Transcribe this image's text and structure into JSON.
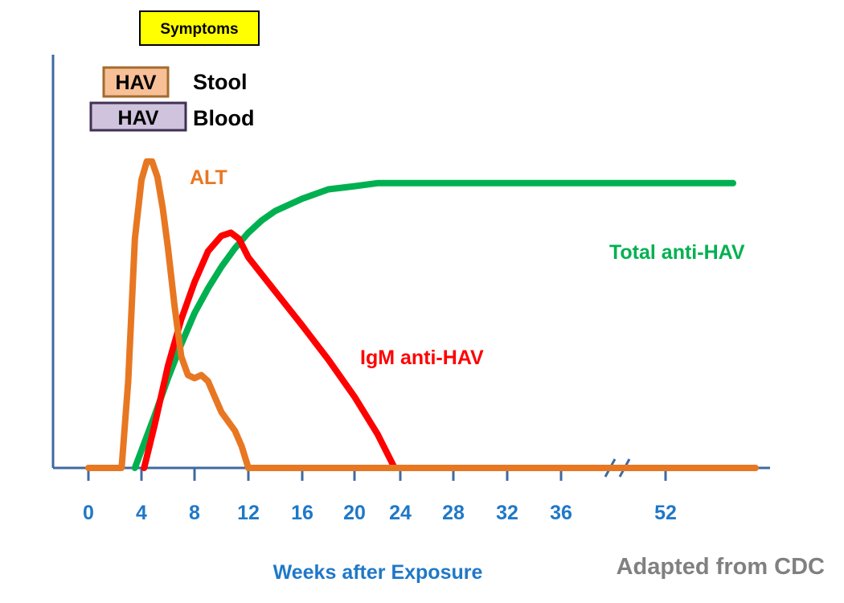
{
  "chart_data": {
    "type": "line",
    "title": "",
    "xlabel": "Weeks after Exposure",
    "ylabel": "",
    "x_ticks": [
      "0",
      "4",
      "8",
      "12",
      "16",
      "20",
      "24",
      "28",
      "32",
      "36",
      "52"
    ],
    "x_axis_break": "between 36 and 52",
    "xlim": [
      0,
      60
    ],
    "ylim": [
      0,
      1
    ],
    "grid": false,
    "series": [
      {
        "name": "ALT",
        "color": "#e87722",
        "x": [
          0,
          2,
          2.5,
          3,
          3.5,
          4,
          4.4,
          4.8,
          5.2,
          5.6,
          6,
          6.5,
          7,
          7.5,
          8,
          8.5,
          9,
          9.5,
          10,
          11,
          11.5,
          12,
          14,
          20,
          24,
          30,
          36,
          60
        ],
        "y": [
          0.0,
          0.0,
          0.0,
          0.28,
          0.74,
          0.93,
          0.99,
          0.99,
          0.94,
          0.84,
          0.71,
          0.52,
          0.36,
          0.3,
          0.29,
          0.3,
          0.28,
          0.23,
          0.18,
          0.12,
          0.07,
          0.0,
          0.0,
          0.0,
          0.0,
          0.0,
          0.0,
          0.0
        ]
      },
      {
        "name": "Total anti-HAV",
        "color": "#00b050",
        "x": [
          3.5,
          5,
          6,
          7,
          8,
          9,
          10,
          11,
          12,
          13,
          14,
          16,
          18,
          20,
          22,
          24,
          30,
          36,
          52,
          58
        ],
        "y": [
          0.0,
          0.17,
          0.29,
          0.4,
          0.5,
          0.58,
          0.65,
          0.71,
          0.76,
          0.8,
          0.83,
          0.87,
          0.9,
          0.91,
          0.92,
          0.92,
          0.92,
          0.92,
          0.92,
          0.92
        ]
      },
      {
        "name": "IgM anti-HAV",
        "color": "#ff0000",
        "x": [
          4.2,
          5,
          6,
          7,
          8,
          9,
          10,
          10.7,
          11.3,
          12,
          14,
          16,
          18,
          20,
          22,
          23.5
        ],
        "y": [
          0.0,
          0.14,
          0.33,
          0.48,
          0.6,
          0.7,
          0.75,
          0.76,
          0.74,
          0.68,
          0.57,
          0.46,
          0.35,
          0.23,
          0.11,
          0.0
        ]
      }
    ],
    "annotations": {
      "symptoms": "Symptoms",
      "stool_badge": "HAV",
      "stool_label": "Stool",
      "blood_badge": "HAV",
      "blood_label": "Blood",
      "source": "Adapted from CDC"
    },
    "colors": {
      "axis": "#3f6aa0",
      "tick_label": "#1f78c8",
      "symptoms_bg": "#ffff00",
      "stool_bg": "#f7c097",
      "stool_border": "#a46b2e",
      "blood_bg": "#cfc3dd",
      "blood_border": "#3f3153",
      "source_text": "#808080"
    }
  }
}
